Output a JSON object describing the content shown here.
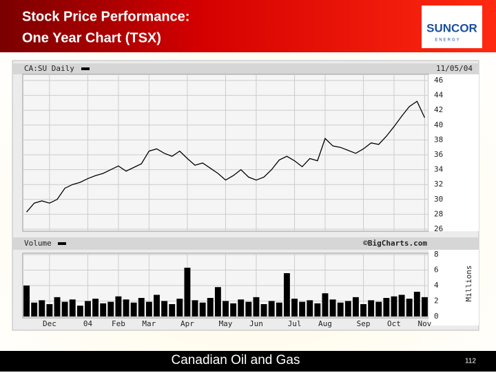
{
  "slide": {
    "title_lines": [
      "Stock Price Performance:",
      "One Year Chart (TSX)"
    ],
    "logo": {
      "name": "SUNCOR",
      "tagline": "ENERGY"
    },
    "footer": "Canadian Oil and Gas",
    "page_number": "112"
  },
  "chart_data": [
    {
      "type": "line",
      "title": "CA:SU Daily",
      "date": "11/05/04",
      "color": "#000000",
      "grid": true,
      "values": [
        28.3,
        29.5,
        29.8,
        29.5,
        30.0,
        31.5,
        32.0,
        32.3,
        32.8,
        33.2,
        33.5,
        34.0,
        34.5,
        33.8,
        34.3,
        34.8,
        36.5,
        36.8,
        36.2,
        35.8,
        36.5,
        35.5,
        34.6,
        34.9,
        34.2,
        33.5,
        32.6,
        33.2,
        34.0,
        33.0,
        32.6,
        33.0,
        34.0,
        35.3,
        35.8,
        35.2,
        34.4,
        35.5,
        35.2,
        38.2,
        37.2,
        37.0,
        36.6,
        36.2,
        36.8,
        37.6,
        37.4,
        38.5,
        39.8,
        41.2,
        42.5,
        43.2,
        41.0
      ],
      "ylim": [
        26,
        46
      ],
      "yticks": [
        26,
        28,
        30,
        32,
        34,
        36,
        38,
        40,
        42,
        44,
        46
      ]
    },
    {
      "type": "bar",
      "title": "Volume",
      "source": "©BigCharts.com",
      "y_label": "Millions",
      "color": "#000000",
      "grid": true,
      "categories": [
        null,
        null,
        null,
        "Dec",
        null,
        null,
        null,
        null,
        "04",
        null,
        null,
        null,
        "Feb",
        null,
        null,
        null,
        "Mar",
        null,
        null,
        null,
        null,
        "Apr",
        null,
        null,
        null,
        null,
        "May",
        null,
        null,
        null,
        "Jun",
        null,
        null,
        null,
        null,
        "Jul",
        null,
        null,
        null,
        "Aug",
        null,
        null,
        null,
        null,
        "Sep",
        null,
        null,
        null,
        "Oct",
        null,
        null,
        null,
        "Nov"
      ],
      "values": [
        4.0,
        1.8,
        2.1,
        1.6,
        2.5,
        1.9,
        2.2,
        1.4,
        2.0,
        2.3,
        1.7,
        1.9,
        2.6,
        2.2,
        1.8,
        2.4,
        1.9,
        2.8,
        2.0,
        1.6,
        2.3,
        6.3,
        2.1,
        1.8,
        2.4,
        3.8,
        2.0,
        1.7,
        2.2,
        1.9,
        2.5,
        1.6,
        2.0,
        1.8,
        5.6,
        2.3,
        1.9,
        2.1,
        1.7,
        3.0,
        2.2,
        1.8,
        2.0,
        2.5,
        1.6,
        2.1,
        1.9,
        2.4,
        2.6,
        2.8,
        2.3,
        3.2,
        2.5
      ],
      "ylim": [
        0,
        8
      ],
      "yticks": [
        0,
        2,
        4,
        6,
        8
      ]
    }
  ]
}
